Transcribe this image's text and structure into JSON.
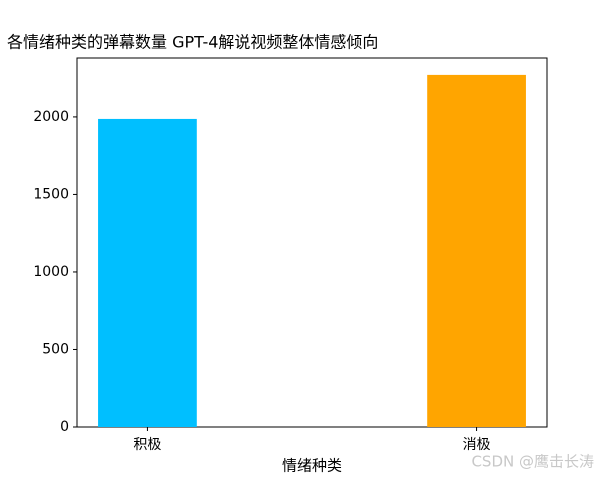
{
  "chart_data": {
    "type": "bar",
    "title": "各情绪种类的弹幕数量  GPT-4解说视频整体情感倾向",
    "x_label": "情绪种类",
    "categories": [
      "积极",
      "消极"
    ],
    "values": [
      1987,
      2271
    ],
    "colors": [
      "#00bfff",
      "#ffa500"
    ],
    "ylim": [
      0,
      2380
    ],
    "yticks": [
      0,
      500,
      1000,
      1500,
      2000
    ],
    "watermark": "CSDN @鹰击长涛"
  }
}
